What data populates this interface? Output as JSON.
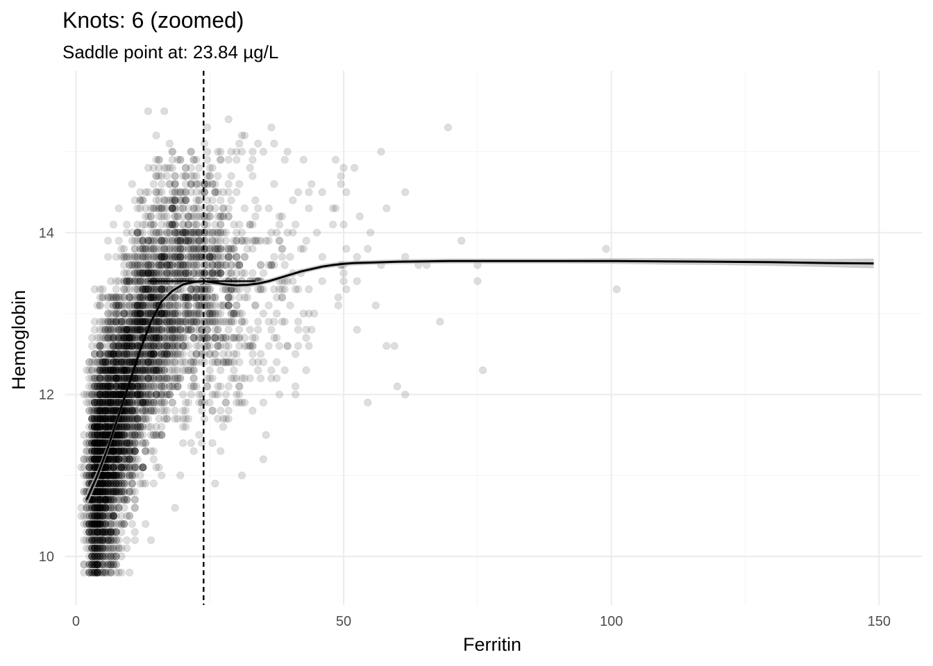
{
  "chart_data": {
    "type": "scatter",
    "title": "Knots: 6 (zoomed)",
    "subtitle": "Saddle point at: 23.84 µg/L",
    "xlabel": "Ferritin",
    "ylabel": "Hemoglobin",
    "xlim": [
      -2,
      158
    ],
    "ylim": [
      9.4,
      16.0
    ],
    "x_ticks": [
      0,
      50,
      100,
      150
    ],
    "y_ticks": [
      10,
      12,
      14
    ],
    "grid": true,
    "legend": "none",
    "saddle_point_x": 23.84,
    "colors": {
      "points": "#000000",
      "curve": "#000000",
      "ribbon": "#bdbdbd",
      "grid_major": "#ebebeb",
      "grid_minor": "#f5f5f5"
    },
    "point_alpha": 0.13,
    "fit_curve": {
      "x": [
        2,
        4,
        6,
        8,
        10,
        12,
        14,
        16,
        18,
        20,
        22,
        24,
        26,
        28,
        30,
        32,
        34,
        36,
        38,
        40,
        42,
        44,
        46,
        48,
        50,
        52,
        55,
        60,
        65,
        70,
        80,
        90,
        100,
        110,
        120,
        130,
        140,
        149
      ],
      "y": [
        10.7,
        11.0,
        11.35,
        11.75,
        12.15,
        12.55,
        12.9,
        13.15,
        13.28,
        13.36,
        13.39,
        13.4,
        13.38,
        13.36,
        13.35,
        13.355,
        13.37,
        13.4,
        13.44,
        13.48,
        13.52,
        13.55,
        13.58,
        13.6,
        13.615,
        13.625,
        13.63,
        13.64,
        13.645,
        13.65,
        13.65,
        13.65,
        13.65,
        13.645,
        13.64,
        13.635,
        13.625,
        13.62
      ],
      "se": [
        0.09,
        0.07,
        0.06,
        0.05,
        0.04,
        0.035,
        0.03,
        0.03,
        0.03,
        0.03,
        0.03,
        0.03,
        0.03,
        0.03,
        0.03,
        0.03,
        0.03,
        0.03,
        0.03,
        0.03,
        0.03,
        0.03,
        0.03,
        0.03,
        0.03,
        0.03,
        0.03,
        0.03,
        0.03,
        0.03,
        0.03,
        0.03,
        0.035,
        0.04,
        0.04,
        0.045,
        0.05,
        0.06
      ]
    },
    "saddle_segment": {
      "x": [
        13.5,
        33.5
      ],
      "y": [
        13.4,
        13.4
      ]
    },
    "points": {
      "seed": 17,
      "n": 5200,
      "x_range": [
        0.5,
        150
      ],
      "y_range": [
        9.8,
        15.6
      ],
      "y_step": 0.1,
      "x_rounding": 0.5
    }
  }
}
